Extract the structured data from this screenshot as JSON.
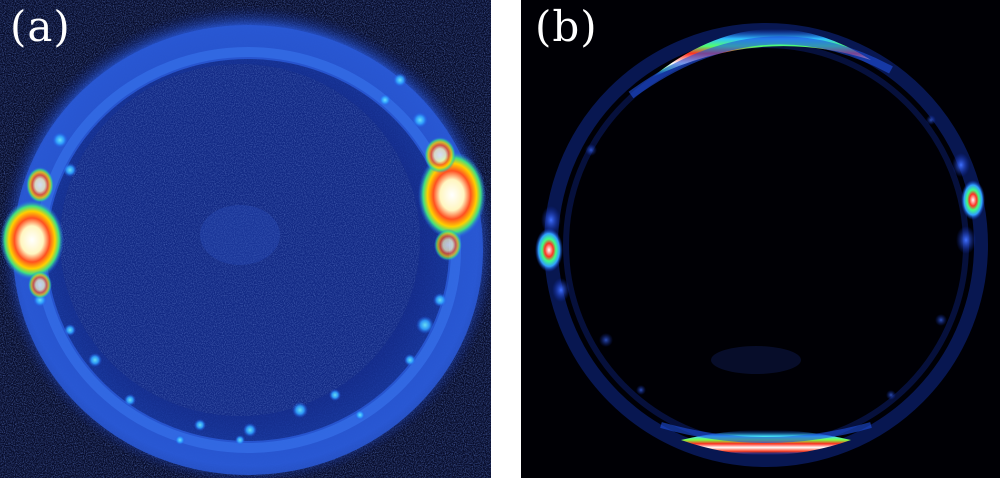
{
  "figure": {
    "panels": [
      {
        "id": "a",
        "label": "(a)"
      },
      {
        "id": "b",
        "label": "(b)"
      }
    ],
    "colormap": [
      "#000010",
      "#0a1a6a",
      "#1f3fd0",
      "#30c0ff",
      "#40ff80",
      "#ffe000",
      "#ff2000",
      "#ffffff"
    ]
  }
}
